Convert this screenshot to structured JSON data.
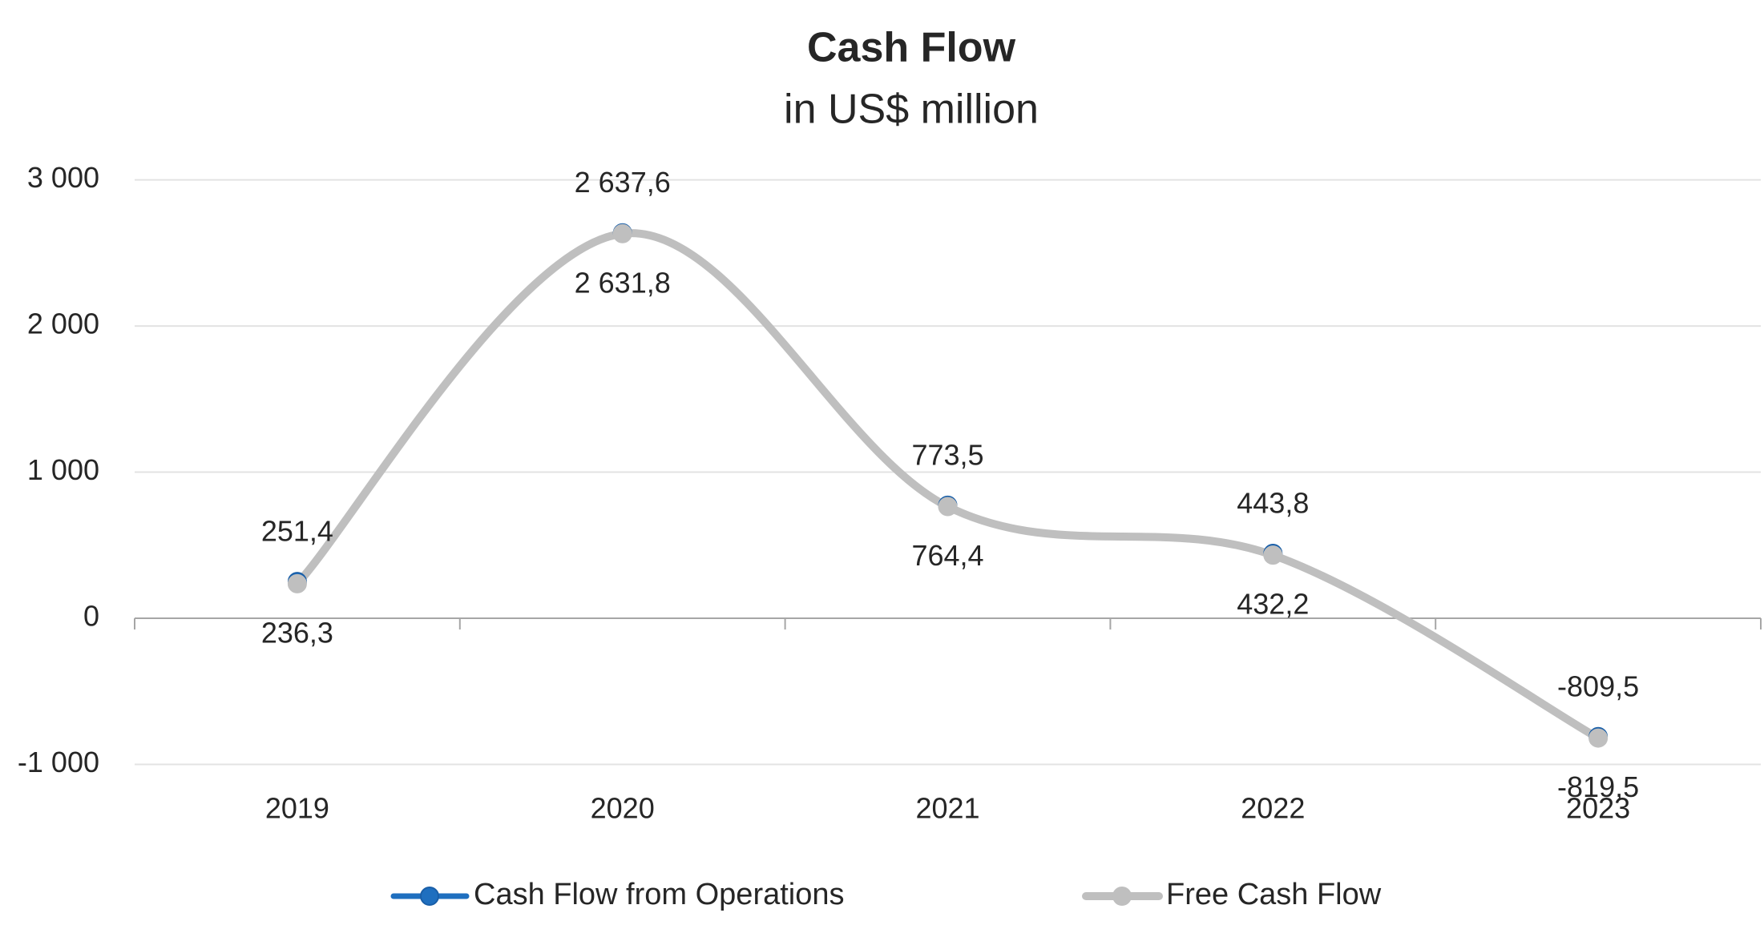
{
  "chart_data": {
    "type": "line",
    "title": "Cash Flow",
    "subtitle": "in US$ million",
    "categories": [
      "2019",
      "2020",
      "2021",
      "2022",
      "2023"
    ],
    "series": [
      {
        "name": "Cash Flow from Operations",
        "color": "#1f6fbf",
        "values": [
          251.4,
          2637.6,
          773.5,
          443.8,
          -809.5
        ],
        "value_labels": [
          "251,4",
          "2 637,6",
          "773,5",
          "443,8",
          "-809,5"
        ]
      },
      {
        "name": "Free Cash Flow",
        "color": "#bfbfbf",
        "values": [
          236.3,
          2631.8,
          764.4,
          432.2,
          -819.5
        ],
        "value_labels": [
          "236,3",
          "2 631,8",
          "764,4",
          "432,2",
          "-819,5"
        ]
      }
    ],
    "ylim": [
      -1000,
      3000
    ],
    "yticks": [
      {
        "value": -1000,
        "label": "-1 000"
      },
      0,
      {
        "value": 1000,
        "label": "1 000"
      },
      {
        "value": 2000,
        "label": "2 000"
      },
      {
        "value": 3000,
        "label": "3 000"
      }
    ],
    "grid": true,
    "smooth": true,
    "legend": "bottom"
  }
}
